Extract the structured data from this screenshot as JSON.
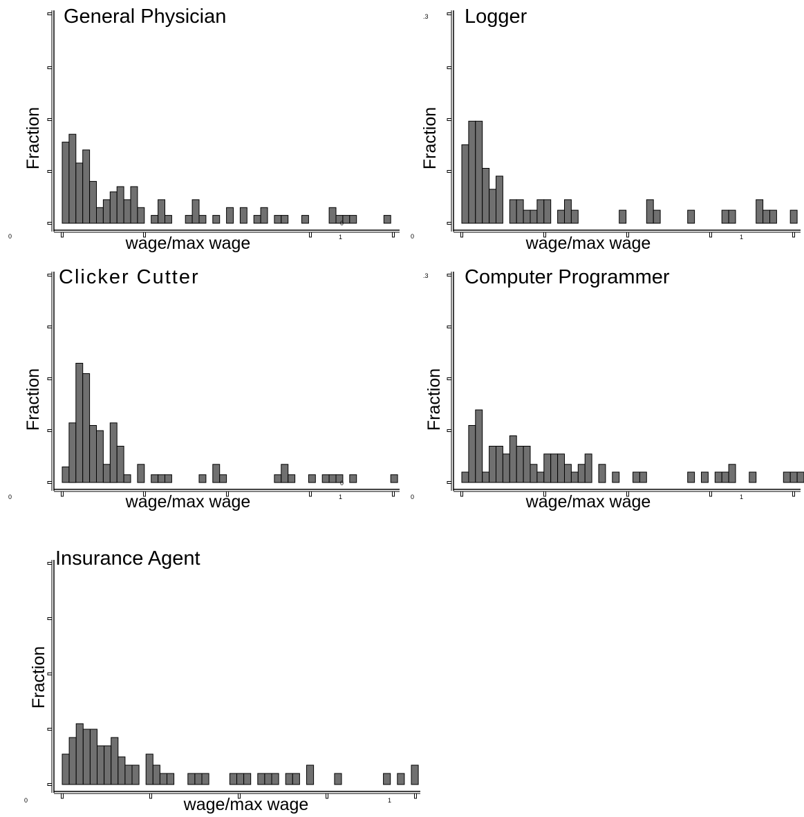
{
  "chart_data": [
    {
      "type": "bar",
      "title": "General Physician",
      "xlabel": "wage/max wage",
      "ylabel": "Fraction",
      "x_tick_labels": {
        "start": "0",
        "one": "1",
        "stray": "0"
      },
      "y_tick_label_top": "",
      "bars": [
        [
          0,
          0.155
        ],
        [
          1,
          0.17
        ],
        [
          2,
          0.115
        ],
        [
          3,
          0.14
        ],
        [
          4,
          0.08
        ],
        [
          5,
          0.03
        ],
        [
          6,
          0.045
        ],
        [
          7,
          0.06
        ],
        [
          8,
          0.07
        ],
        [
          9,
          0.045
        ],
        [
          10,
          0.07
        ],
        [
          11,
          0.03
        ],
        [
          13,
          0.015
        ],
        [
          14,
          0.045
        ],
        [
          15,
          0.015
        ],
        [
          18,
          0.015
        ],
        [
          19,
          0.045
        ],
        [
          20,
          0.015
        ],
        [
          22,
          0.015
        ],
        [
          24,
          0.03
        ],
        [
          26,
          0.03
        ],
        [
          28,
          0.015
        ],
        [
          29,
          0.03
        ],
        [
          31,
          0.015
        ],
        [
          32,
          0.015
        ],
        [
          35,
          0.015
        ],
        [
          39,
          0.03
        ],
        [
          40,
          0.015
        ],
        [
          41,
          0.015
        ],
        [
          42,
          0.015
        ],
        [
          47,
          0.015
        ]
      ]
    },
    {
      "type": "bar",
      "title": "Logger",
      "xlabel": "wage/max wage",
      "ylabel": "Fraction",
      "x_tick_labels": {
        "start": "0",
        "one": "1",
        "stray": ""
      },
      "y_tick_label_top": ".3",
      "bars": [
        [
          0,
          0.15
        ],
        [
          1,
          0.195
        ],
        [
          2,
          0.195
        ],
        [
          3,
          0.105
        ],
        [
          4,
          0.065
        ],
        [
          5,
          0.09
        ],
        [
          7,
          0.045
        ],
        [
          8,
          0.045
        ],
        [
          9,
          0.025
        ],
        [
          10,
          0.025
        ],
        [
          11,
          0.045
        ],
        [
          12,
          0.045
        ],
        [
          14,
          0.025
        ],
        [
          15,
          0.045
        ],
        [
          16,
          0.025
        ],
        [
          23,
          0.025
        ],
        [
          27,
          0.045
        ],
        [
          28,
          0.025
        ],
        [
          33,
          0.025
        ],
        [
          38,
          0.025
        ],
        [
          39,
          0.025
        ],
        [
          43,
          0.045
        ],
        [
          44,
          0.025
        ],
        [
          45,
          0.025
        ],
        [
          48,
          0.025
        ]
      ]
    },
    {
      "type": "bar",
      "title": "Clicker Cutter",
      "xlabel": "wage/max wage",
      "ylabel": "Fraction",
      "x_tick_labels": {
        "start": "0",
        "one": "1",
        "stray": "0"
      },
      "y_tick_label_top": "",
      "bars": [
        [
          0,
          0.03
        ],
        [
          1,
          0.115
        ],
        [
          2,
          0.23
        ],
        [
          3,
          0.21
        ],
        [
          4,
          0.11
        ],
        [
          5,
          0.1
        ],
        [
          6,
          0.035
        ],
        [
          7,
          0.115
        ],
        [
          8,
          0.07
        ],
        [
          9,
          0.015
        ],
        [
          11,
          0.035
        ],
        [
          13,
          0.015
        ],
        [
          14,
          0.015
        ],
        [
          15,
          0.015
        ],
        [
          20,
          0.015
        ],
        [
          22,
          0.035
        ],
        [
          23,
          0.015
        ],
        [
          31,
          0.015
        ],
        [
          32,
          0.035
        ],
        [
          33,
          0.015
        ],
        [
          36,
          0.015
        ],
        [
          38,
          0.015
        ],
        [
          39,
          0.015
        ],
        [
          40,
          0.015
        ],
        [
          42,
          0.015
        ],
        [
          48,
          0.015
        ]
      ]
    },
    {
      "type": "bar",
      "title": "Computer Programmer",
      "xlabel": "wage/max wage",
      "ylabel": "Fraction",
      "x_tick_labels": {
        "start": "0",
        "one": "1",
        "stray": ""
      },
      "y_tick_label_top": ".3",
      "bars": [
        [
          0,
          0.02
        ],
        [
          1,
          0.11
        ],
        [
          2,
          0.14
        ],
        [
          3,
          0.02
        ],
        [
          4,
          0.07
        ],
        [
          5,
          0.07
        ],
        [
          6,
          0.055
        ],
        [
          7,
          0.09
        ],
        [
          8,
          0.07
        ],
        [
          9,
          0.07
        ],
        [
          10,
          0.035
        ],
        [
          11,
          0.02
        ],
        [
          12,
          0.055
        ],
        [
          13,
          0.055
        ],
        [
          14,
          0.055
        ],
        [
          15,
          0.035
        ],
        [
          16,
          0.02
        ],
        [
          17,
          0.035
        ],
        [
          18,
          0.055
        ],
        [
          20,
          0.035
        ],
        [
          22,
          0.02
        ],
        [
          25,
          0.02
        ],
        [
          26,
          0.02
        ],
        [
          33,
          0.02
        ],
        [
          35,
          0.02
        ],
        [
          37,
          0.02
        ],
        [
          38,
          0.02
        ],
        [
          39,
          0.035
        ],
        [
          42,
          0.02
        ],
        [
          47,
          0.02
        ],
        [
          48,
          0.02
        ],
        [
          49,
          0.02
        ]
      ]
    },
    {
      "type": "bar",
      "title": "Insurance Agent",
      "xlabel": "wage/max wage",
      "ylabel": "Fraction",
      "x_tick_labels": {
        "start": "0",
        "one": "1",
        "stray": ""
      },
      "y_tick_label_top": "",
      "bars": [
        [
          0,
          0.055
        ],
        [
          1,
          0.085
        ],
        [
          2,
          0.11
        ],
        [
          3,
          0.1
        ],
        [
          4,
          0.1
        ],
        [
          5,
          0.07
        ],
        [
          6,
          0.07
        ],
        [
          7,
          0.085
        ],
        [
          8,
          0.05
        ],
        [
          9,
          0.035
        ],
        [
          10,
          0.035
        ],
        [
          12,
          0.055
        ],
        [
          13,
          0.035
        ],
        [
          14,
          0.02
        ],
        [
          15,
          0.02
        ],
        [
          18,
          0.02
        ],
        [
          19,
          0.02
        ],
        [
          20,
          0.02
        ],
        [
          24,
          0.02
        ],
        [
          25,
          0.02
        ],
        [
          26,
          0.02
        ],
        [
          28,
          0.02
        ],
        [
          29,
          0.02
        ],
        [
          30,
          0.02
        ],
        [
          32,
          0.02
        ],
        [
          33,
          0.02
        ],
        [
          35,
          0.035
        ],
        [
          39,
          0.02
        ],
        [
          46,
          0.02
        ],
        [
          48,
          0.02
        ],
        [
          50,
          0.035
        ]
      ]
    }
  ]
}
